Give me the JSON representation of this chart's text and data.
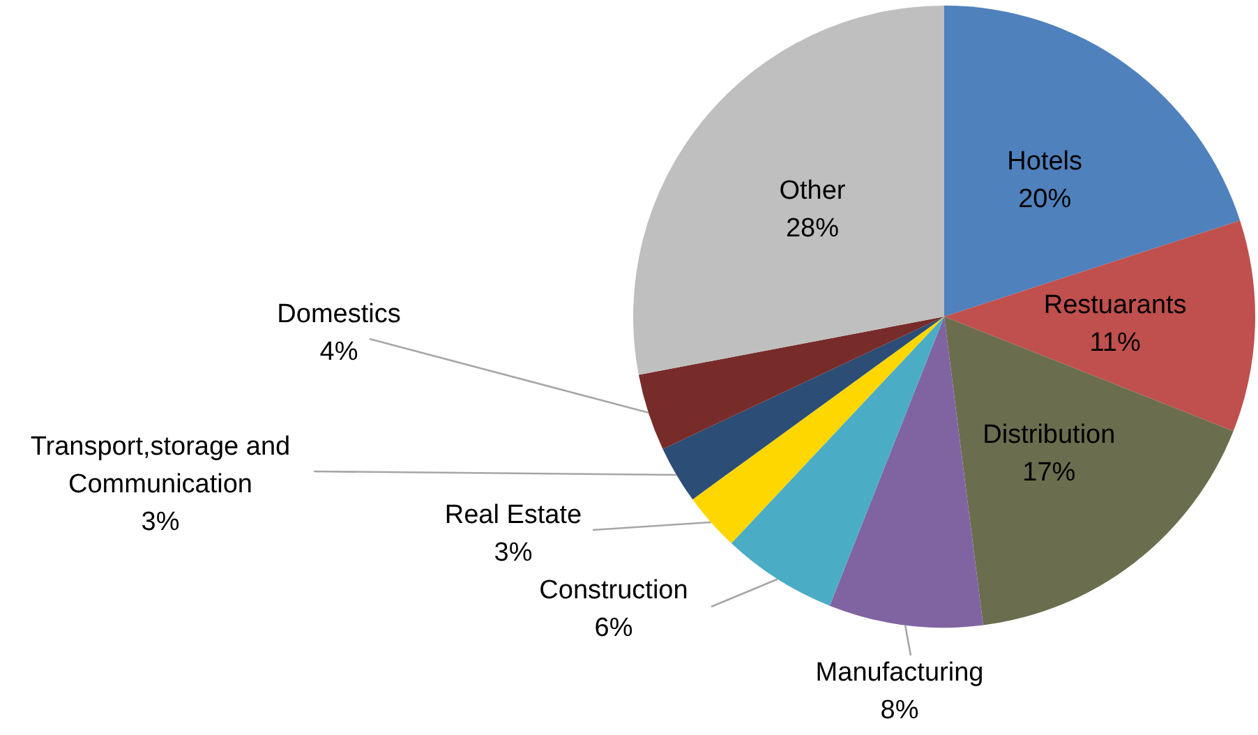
{
  "chart_data": {
    "type": "pie",
    "categories": [
      "Hotels",
      "Restuarants",
      "Distribution",
      "Manufacturing",
      "Construction",
      "Real Estate",
      "Transport,storage and Communication",
      "Domestics",
      "Other"
    ],
    "values": [
      20,
      11,
      17,
      8,
      6,
      3,
      3,
      4,
      28
    ],
    "colors": [
      "#4f81bd",
      "#c0504d",
      "#6b6e4e",
      "#8064a2",
      "#4bacc6",
      "#ffd700",
      "#2c4d75",
      "#772c2a",
      "#bfbfbf"
    ],
    "value_labels": [
      "20%",
      "11%",
      "17%",
      "8%",
      "6%",
      "3%",
      "3%",
      "4%",
      "28%"
    ]
  }
}
